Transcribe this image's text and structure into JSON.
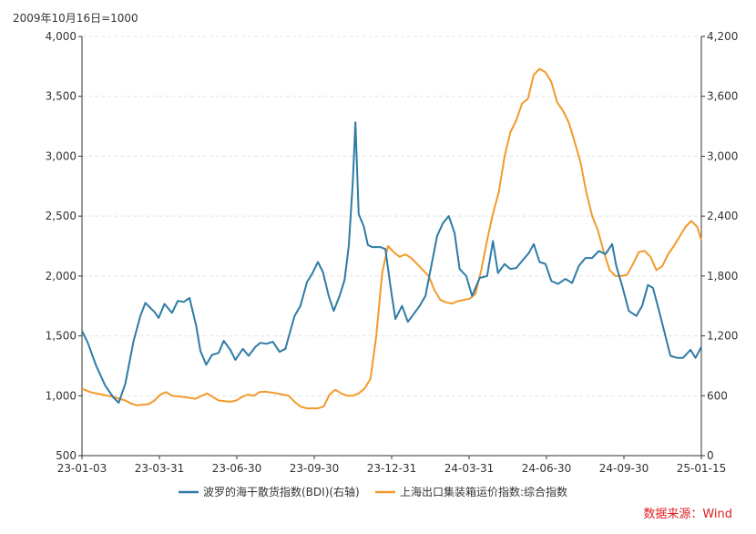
{
  "chart_data": {
    "type": "line",
    "unit_label": "2009年10月16日=1000",
    "x_tick_labels": [
      "23-01-03",
      "23-03-31",
      "23-06-30",
      "23-09-30",
      "23-12-31",
      "24-03-31",
      "24-06-30",
      "24-09-30",
      "25-01-15"
    ],
    "x_range": [
      "2023-01-03",
      "2025-01-15"
    ],
    "ylim_left": [
      500,
      4000
    ],
    "yticks_left": [
      "500",
      "1,000",
      "1,500",
      "2,000",
      "2,500",
      "3,000",
      "3,500",
      "4,000"
    ],
    "ylim_right": [
      0,
      4200
    ],
    "yticks_right": [
      "0",
      "600",
      "1,200",
      "1,800",
      "2,400",
      "3,000",
      "3,600",
      "4,200"
    ],
    "grid": "horizontal dashed",
    "legend_position": "bottom-center",
    "series": [
      {
        "name": "波罗的海干散货指数(BDI)(右轴)",
        "axis": "right",
        "color": "#2e7ba6",
        "points": [
          [
            "2023-01-03",
            1250
          ],
          [
            "2023-01-10",
            1130
          ],
          [
            "2023-01-20",
            900
          ],
          [
            "2023-01-31",
            700
          ],
          [
            "2023-02-10",
            580
          ],
          [
            "2023-02-16",
            530
          ],
          [
            "2023-02-24",
            720
          ],
          [
            "2023-03-06",
            1150
          ],
          [
            "2023-03-14",
            1400
          ],
          [
            "2023-03-20",
            1530
          ],
          [
            "2023-03-31",
            1440
          ],
          [
            "2023-04-05",
            1380
          ],
          [
            "2023-04-12",
            1520
          ],
          [
            "2023-04-21",
            1430
          ],
          [
            "2023-04-28",
            1550
          ],
          [
            "2023-05-05",
            1540
          ],
          [
            "2023-05-12",
            1580
          ],
          [
            "2023-05-20",
            1300
          ],
          [
            "2023-05-25",
            1050
          ],
          [
            "2023-06-01",
            910
          ],
          [
            "2023-06-08",
            1010
          ],
          [
            "2023-06-16",
            1030
          ],
          [
            "2023-06-22",
            1150
          ],
          [
            "2023-06-30",
            1060
          ],
          [
            "2023-07-06",
            960
          ],
          [
            "2023-07-15",
            1070
          ],
          [
            "2023-07-22",
            1000
          ],
          [
            "2023-07-30",
            1090
          ],
          [
            "2023-08-05",
            1130
          ],
          [
            "2023-08-12",
            1120
          ],
          [
            "2023-08-20",
            1140
          ],
          [
            "2023-08-28",
            1040
          ],
          [
            "2023-09-04",
            1070
          ],
          [
            "2023-09-10",
            1250
          ],
          [
            "2023-09-15",
            1400
          ],
          [
            "2023-09-22",
            1500
          ],
          [
            "2023-09-30",
            1740
          ],
          [
            "2023-10-06",
            1820
          ],
          [
            "2023-10-13",
            1940
          ],
          [
            "2023-10-19",
            1840
          ],
          [
            "2023-10-26",
            1600
          ],
          [
            "2023-11-01",
            1450
          ],
          [
            "2023-11-08",
            1600
          ],
          [
            "2023-11-14",
            1760
          ],
          [
            "2023-11-19",
            2100
          ],
          [
            "2023-11-24",
            2750
          ],
          [
            "2023-11-27",
            3340
          ],
          [
            "2023-12-01",
            2420
          ],
          [
            "2023-12-07",
            2300
          ],
          [
            "2023-12-12",
            2110
          ],
          [
            "2023-12-17",
            2090
          ],
          [
            "2023-12-21",
            2090
          ],
          [
            "2023-12-27",
            2090
          ],
          [
            "2024-01-02",
            2070
          ],
          [
            "2024-01-08",
            1700
          ],
          [
            "2024-01-14",
            1370
          ],
          [
            "2024-01-22",
            1500
          ],
          [
            "2024-01-29",
            1340
          ],
          [
            "2024-02-05",
            1420
          ],
          [
            "2024-02-12",
            1500
          ],
          [
            "2024-02-19",
            1600
          ],
          [
            "2024-02-26",
            1900
          ],
          [
            "2024-03-04",
            2200
          ],
          [
            "2024-03-11",
            2330
          ],
          [
            "2024-03-18",
            2400
          ],
          [
            "2024-03-25",
            2230
          ],
          [
            "2024-03-31",
            1870
          ],
          [
            "2024-04-08",
            1800
          ],
          [
            "2024-04-15",
            1600
          ],
          [
            "2024-04-24",
            1780
          ],
          [
            "2024-05-03",
            1800
          ],
          [
            "2024-05-10",
            2150
          ],
          [
            "2024-05-16",
            1830
          ],
          [
            "2024-05-24",
            1920
          ],
          [
            "2024-05-31",
            1870
          ],
          [
            "2024-06-07",
            1880
          ],
          [
            "2024-06-14",
            1950
          ],
          [
            "2024-06-22",
            2030
          ],
          [
            "2024-06-28",
            2120
          ],
          [
            "2024-07-05",
            1940
          ],
          [
            "2024-07-12",
            1920
          ],
          [
            "2024-07-19",
            1750
          ],
          [
            "2024-07-27",
            1720
          ],
          [
            "2024-08-05",
            1770
          ],
          [
            "2024-08-13",
            1730
          ],
          [
            "2024-08-21",
            1900
          ],
          [
            "2024-08-29",
            1980
          ],
          [
            "2024-09-06",
            1980
          ],
          [
            "2024-09-14",
            2050
          ],
          [
            "2024-09-22",
            2020
          ],
          [
            "2024-09-30",
            2120
          ],
          [
            "2024-10-05",
            1900
          ],
          [
            "2024-10-12",
            1700
          ],
          [
            "2024-10-20",
            1450
          ],
          [
            "2024-10-29",
            1400
          ],
          [
            "2024-11-05",
            1500
          ],
          [
            "2024-11-12",
            1710
          ],
          [
            "2024-11-18",
            1680
          ],
          [
            "2024-11-25",
            1460
          ],
          [
            "2024-12-02",
            1230
          ],
          [
            "2024-12-09",
            1000
          ],
          [
            "2024-12-17",
            980
          ],
          [
            "2024-12-24",
            980
          ],
          [
            "2025-01-02",
            1060
          ],
          [
            "2025-01-08",
            980
          ],
          [
            "2025-01-15",
            1090
          ]
        ]
      },
      {
        "name": "上海出口集装箱运价指数:综合指数",
        "axis": "left",
        "color": "#f39a2c",
        "points": [
          [
            "2023-01-03",
            1060
          ],
          [
            "2023-01-13",
            1030
          ],
          [
            "2023-01-27",
            1010
          ],
          [
            "2023-02-10",
            990
          ],
          [
            "2023-02-24",
            960
          ],
          [
            "2023-03-03",
            935
          ],
          [
            "2023-03-10",
            920
          ],
          [
            "2023-03-24",
            930
          ],
          [
            "2023-03-31",
            960
          ],
          [
            "2023-04-07",
            1010
          ],
          [
            "2023-04-14",
            1030
          ],
          [
            "2023-04-21",
            1000
          ],
          [
            "2023-05-05",
            990
          ],
          [
            "2023-05-19",
            975
          ],
          [
            "2023-06-02",
            1020
          ],
          [
            "2023-06-09",
            990
          ],
          [
            "2023-06-16",
            960
          ],
          [
            "2023-06-30",
            950
          ],
          [
            "2023-07-07",
            960
          ],
          [
            "2023-07-14",
            990
          ],
          [
            "2023-07-21",
            1010
          ],
          [
            "2023-07-28",
            1000
          ],
          [
            "2023-08-04",
            1030
          ],
          [
            "2023-08-11",
            1035
          ],
          [
            "2023-08-25",
            1020
          ],
          [
            "2023-09-01",
            1010
          ],
          [
            "2023-09-08",
            1000
          ],
          [
            "2023-09-15",
            950
          ],
          [
            "2023-09-22",
            910
          ],
          [
            "2023-09-30",
            895
          ],
          [
            "2023-10-13",
            895
          ],
          [
            "2023-10-20",
            910
          ],
          [
            "2023-10-27",
            1010
          ],
          [
            "2023-11-03",
            1050
          ],
          [
            "2023-11-10",
            1020
          ],
          [
            "2023-11-17",
            1000
          ],
          [
            "2023-11-24",
            1000
          ],
          [
            "2023-12-01",
            1020
          ],
          [
            "2023-12-08",
            1060
          ],
          [
            "2023-12-15",
            1140
          ],
          [
            "2023-12-22",
            1500
          ],
          [
            "2023-12-29",
            2020
          ],
          [
            "2024-01-05",
            2250
          ],
          [
            "2024-01-12",
            2200
          ],
          [
            "2024-01-19",
            2160
          ],
          [
            "2024-01-26",
            2180
          ],
          [
            "2024-02-02",
            2150
          ],
          [
            "2024-02-09",
            2100
          ],
          [
            "2024-02-23",
            2000
          ],
          [
            "2024-03-01",
            1880
          ],
          [
            "2024-03-08",
            1800
          ],
          [
            "2024-03-15",
            1780
          ],
          [
            "2024-03-22",
            1770
          ],
          [
            "2024-03-29",
            1790
          ],
          [
            "2024-04-12",
            1810
          ],
          [
            "2024-04-19",
            1850
          ],
          [
            "2024-04-26",
            2050
          ],
          [
            "2024-05-03",
            2300
          ],
          [
            "2024-05-10",
            2520
          ],
          [
            "2024-05-17",
            2700
          ],
          [
            "2024-05-24",
            3000
          ],
          [
            "2024-05-31",
            3200
          ],
          [
            "2024-06-07",
            3300
          ],
          [
            "2024-06-14",
            3440
          ],
          [
            "2024-06-21",
            3480
          ],
          [
            "2024-06-28",
            3680
          ],
          [
            "2024-07-05",
            3730
          ],
          [
            "2024-07-12",
            3700
          ],
          [
            "2024-07-19",
            3620
          ],
          [
            "2024-07-26",
            3450
          ],
          [
            "2024-08-02",
            3380
          ],
          [
            "2024-08-09",
            3280
          ],
          [
            "2024-08-16",
            3120
          ],
          [
            "2024-08-23",
            2950
          ],
          [
            "2024-08-30",
            2700
          ],
          [
            "2024-09-06",
            2500
          ],
          [
            "2024-09-13",
            2380
          ],
          [
            "2024-09-20",
            2200
          ],
          [
            "2024-09-27",
            2050
          ],
          [
            "2024-10-04",
            2000
          ],
          [
            "2024-10-11",
            2000
          ],
          [
            "2024-10-18",
            2010
          ],
          [
            "2024-10-25",
            2100
          ],
          [
            "2024-11-01",
            2200
          ],
          [
            "2024-11-08",
            2210
          ],
          [
            "2024-11-15",
            2160
          ],
          [
            "2024-11-22",
            2050
          ],
          [
            "2024-11-29",
            2080
          ],
          [
            "2024-12-06",
            2180
          ],
          [
            "2024-12-13",
            2250
          ],
          [
            "2024-12-20",
            2330
          ],
          [
            "2024-12-27",
            2410
          ],
          [
            "2025-01-03",
            2460
          ],
          [
            "2025-01-10",
            2410
          ],
          [
            "2025-01-15",
            2300
          ]
        ]
      }
    ]
  },
  "source_note": "数据来源：Wind"
}
